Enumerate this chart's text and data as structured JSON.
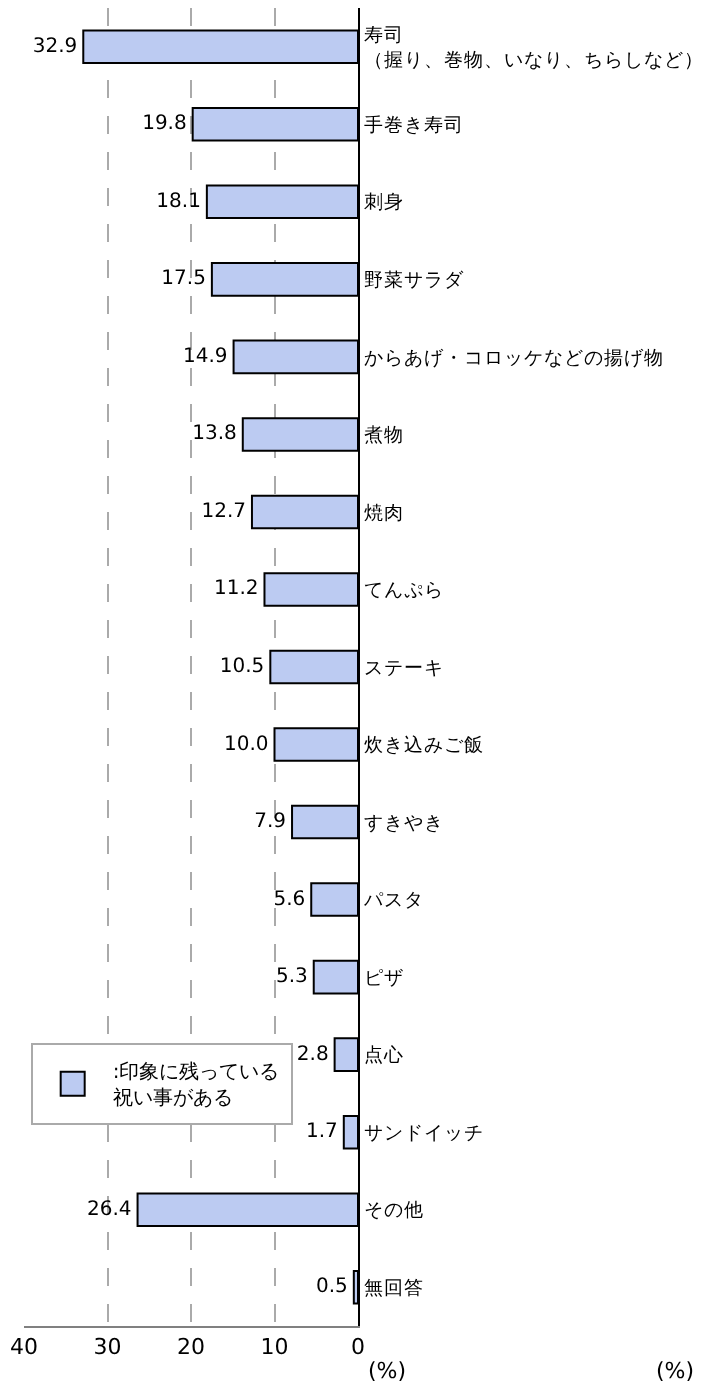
{
  "chart_data": {
    "type": "bar",
    "orientation": "horizontal",
    "categories": [
      "寿司（握り、巻物、いなり、ちらしなど）",
      "手巻き寿司",
      "刺身",
      "野菜サラダ",
      "からあげ・コロッケなどの揚げ物",
      "煮物",
      "焼肉",
      "てんぷら",
      "ステーキ",
      "炊き込みご飯",
      "すきやき",
      "パスタ",
      "ピザ",
      "点心",
      "サンドイッチ",
      "その他",
      "無回答"
    ],
    "series": [
      {
        "name": ":印象に残っている祝い事がある",
        "color": "#bccbf2",
        "values": [
          32.9,
          19.8,
          18.1,
          17.5,
          14.9,
          13.8,
          12.7,
          11.2,
          10.5,
          10.0,
          7.9,
          5.6,
          5.3,
          2.8,
          1.7,
          26.4,
          0.5
        ],
        "value_labels": [
          "32.9",
          "19.8",
          "18.1",
          "17.5",
          "14.9",
          "13.8",
          "12.7",
          "11.2",
          "10.5",
          "10.0",
          "7.9",
          "5.6",
          "5.3",
          "2.8",
          "1.7",
          "26.4",
          "0.5"
        ]
      }
    ],
    "xlim": [
      40,
      0
    ],
    "xticks": [
      40,
      30,
      20,
      10,
      0
    ],
    "xlabel": "(%)",
    "annotations": [
      "(%)"
    ],
    "grid": "x",
    "legend": "bottom left"
  }
}
